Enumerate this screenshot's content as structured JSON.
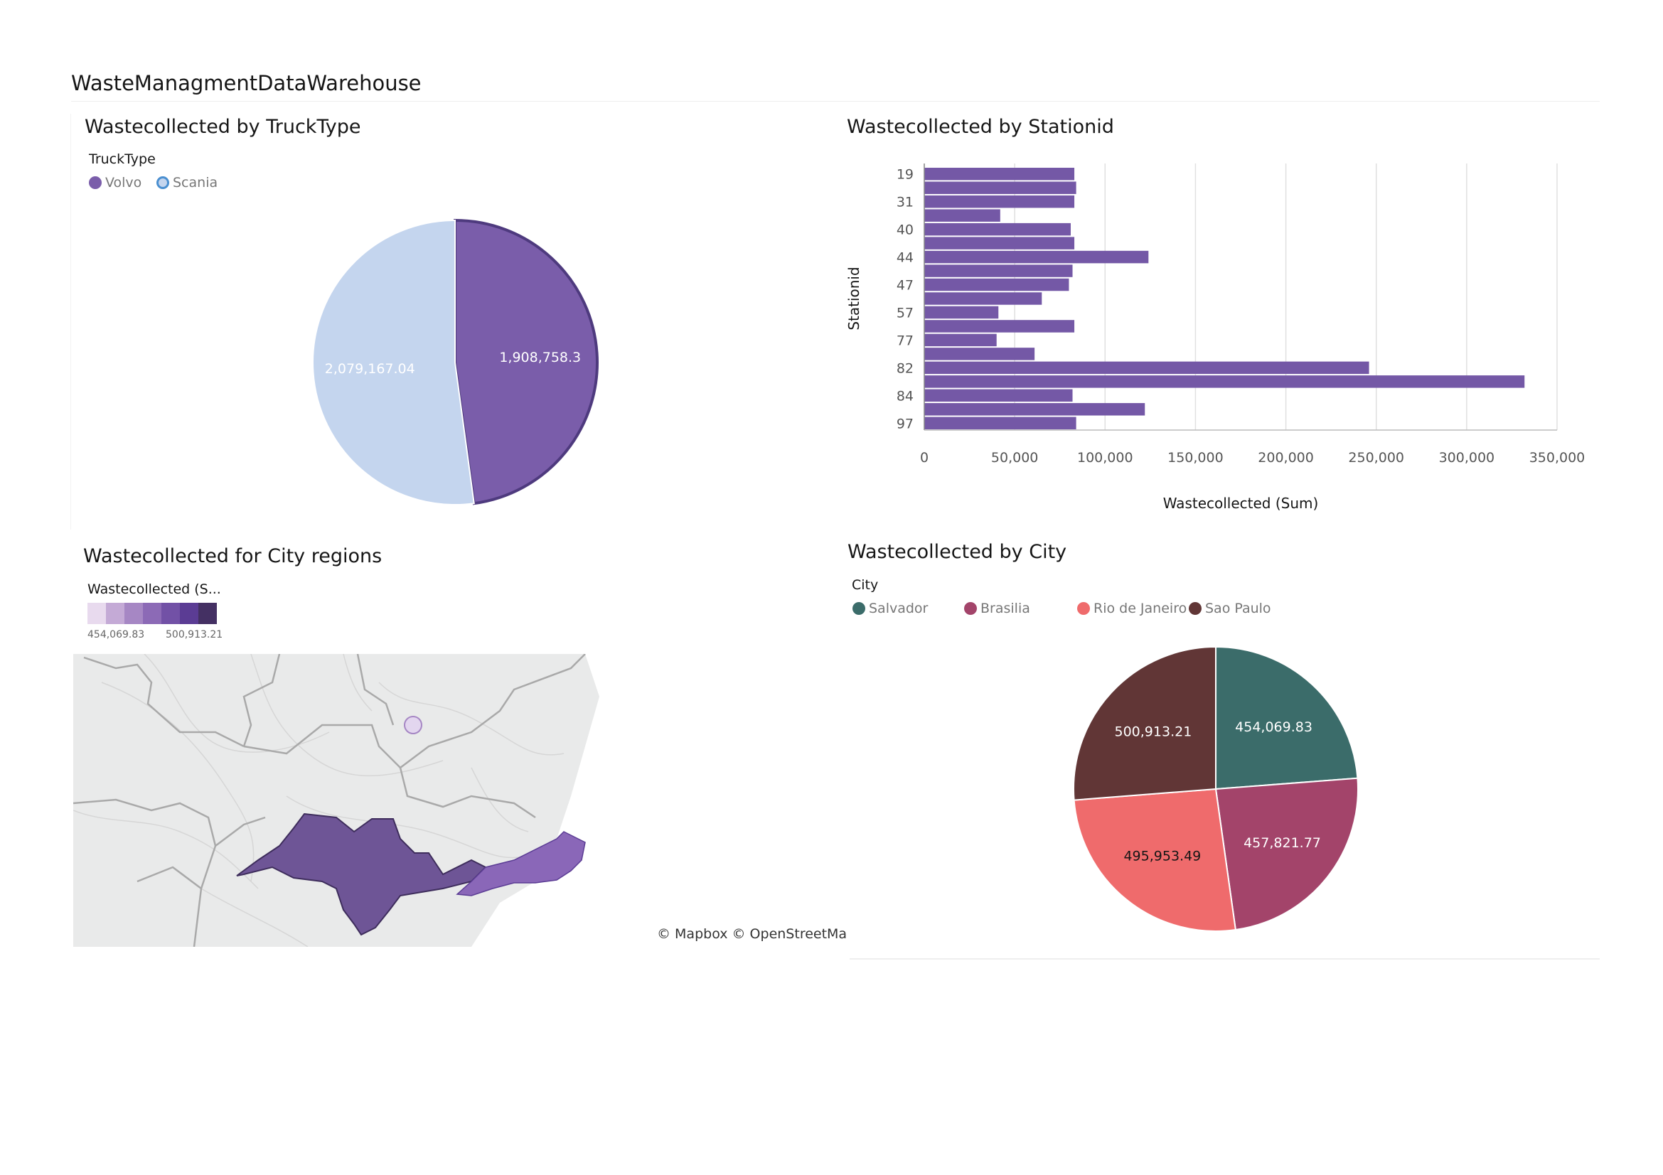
{
  "dashboard": {
    "title": "WasteManagmentDataWarehouse"
  },
  "colors": {
    "volvo": "#7a5daa",
    "scania": "#c4d5ee",
    "salvador": "#3b6c6a",
    "brasilia": "#a3446a",
    "rio": "#ef6b6c",
    "saopaulo": "#613636",
    "bar": "#7458a6",
    "map_scale": [
      "#e8daee",
      "#c4aad6",
      "#a687c4",
      "#8c6ab6",
      "#7251a6",
      "#5b3c94",
      "#443063"
    ]
  },
  "chart_data": [
    {
      "type": "pie",
      "title": "Wastecollected by TruckType",
      "legend_title": "TruckType",
      "legend_position": "top-left",
      "slices": [
        {
          "label": "Volvo",
          "value": 1908758.3,
          "value_label": "1,908,758.3",
          "color": "#7a5daa"
        },
        {
          "label": "Scania",
          "value": 2079167.04,
          "value_label": "2,079,167.04",
          "color": "#c4d5ee"
        }
      ]
    },
    {
      "type": "bar",
      "orientation": "horizontal",
      "title": "Wastecollected by Stationid",
      "xlabel": "Wastecollected (Sum)",
      "ylabel": "Stationid",
      "xlim": [
        0,
        350000
      ],
      "xticks": [
        "0",
        "50,000",
        "100,000",
        "150,000",
        "200,000",
        "250,000",
        "300,000",
        "350,000"
      ],
      "grid": true,
      "categories": [
        "19",
        "",
        "31",
        "",
        "40",
        "",
        "44",
        "",
        "47",
        "",
        "57",
        "",
        "77",
        "",
        "82",
        "",
        "84",
        "",
        "97"
      ],
      "values": [
        83000,
        84000,
        83000,
        42000,
        81000,
        83000,
        124000,
        82000,
        80000,
        65000,
        41000,
        83000,
        40000,
        61000,
        246000,
        332000,
        82000,
        122000,
        84000
      ]
    },
    {
      "type": "pie",
      "title": "Wastecollected by City",
      "legend_title": "City",
      "legend_position": "top-left",
      "slices": [
        {
          "label": "Salvador",
          "value": 454069.83,
          "value_label": "454,069.83",
          "color": "#3b6c6a"
        },
        {
          "label": "Brasilia",
          "value": 457821.77,
          "value_label": "457,821.77",
          "color": "#a3446a"
        },
        {
          "label": "Rio de Janeiro",
          "value": 495953.49,
          "value_label": "495,953.49",
          "color": "#ef6b6c"
        },
        {
          "label": "Sao Paulo",
          "value": 500913.21,
          "value_label": "500,913.21",
          "color": "#613636"
        }
      ]
    }
  ],
  "map": {
    "title": "Wastecollected for City regions",
    "legend_title": "Wastecollected (S...",
    "scale_min": "454,069.83",
    "scale_max": "500,913.21",
    "attribution": "© Mapbox © OpenStreetMa"
  }
}
